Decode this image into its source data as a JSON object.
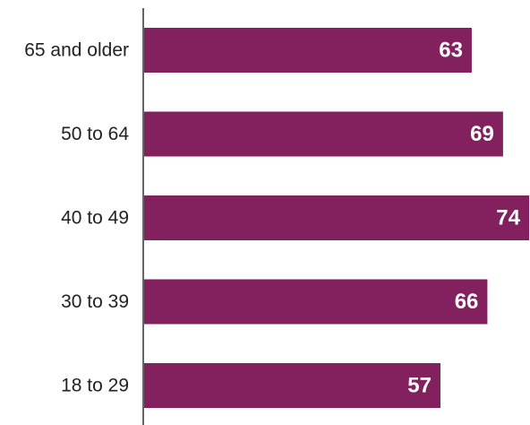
{
  "chart_data": {
    "type": "bar",
    "orientation": "horizontal",
    "categories": [
      "65 and older",
      "50 to 64",
      "40 to 49",
      "30 to 39",
      "18 to 29"
    ],
    "values": [
      63,
      69,
      74,
      66,
      57
    ],
    "data_labels": [
      "63",
      "69",
      "74",
      "66",
      "57"
    ],
    "xlim": [
      0,
      74
    ],
    "grid": false,
    "legend": "none",
    "colors": {
      "bar": "#82215e",
      "axis": "#666666",
      "category_text": "#222222",
      "value_text": "#ffffff"
    }
  }
}
